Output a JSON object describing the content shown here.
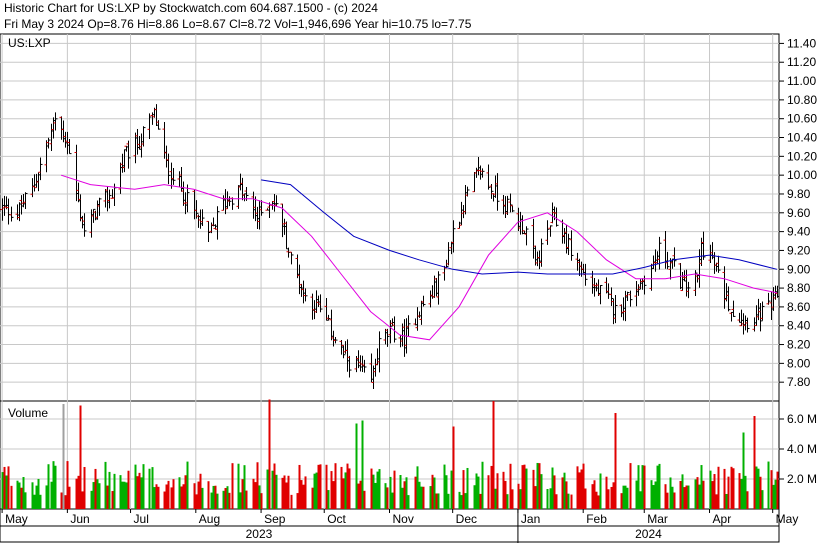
{
  "header": {
    "line1": "Historic Chart for US:LXP by Stockwatch.com 604.687.1500 - (c) 2024",
    "line2": "Fri May  3 2024  Op=8.76  Hi=8.86  Lo=8.67  Cl=8.72  Vol=1,946,696  Year hi=10.75  lo=7.75"
  },
  "chart_data": [
    {
      "type": "ohlc",
      "symbol_label": "US:LXP",
      "ylim": [
        7.6,
        11.5
      ],
      "y_ticks": [
        "11.40",
        "11.20",
        "11.00",
        "10.80",
        "10.60",
        "10.40",
        "10.20",
        "10.00",
        "9.80",
        "9.60",
        "9.40",
        "9.20",
        "9.00",
        "8.80",
        "8.60",
        "8.40",
        "8.20",
        "8.00",
        "7.80"
      ],
      "x_ticks": [
        "May",
        "Jun",
        "Jul",
        "Aug",
        "Sep",
        "Oct",
        "Nov",
        "Dec",
        "Jan",
        "Feb",
        "Mar",
        "Apr",
        "May"
      ],
      "years": [
        "2023",
        "2024"
      ],
      "close_path": [
        [
          "2023-05-01",
          9.65
        ],
        [
          "2023-05-08",
          9.6
        ],
        [
          "2023-05-15",
          9.85
        ],
        [
          "2023-05-22",
          10.3
        ],
        [
          "2023-05-26",
          10.6
        ],
        [
          "2023-06-01",
          10.35
        ],
        [
          "2023-06-05",
          9.8
        ],
        [
          "2023-06-09",
          9.4
        ],
        [
          "2023-06-15",
          9.65
        ],
        [
          "2023-06-22",
          9.8
        ],
        [
          "2023-06-28",
          10.2
        ],
        [
          "2023-07-05",
          10.35
        ],
        [
          "2023-07-12",
          10.65
        ],
        [
          "2023-07-18",
          10.1
        ],
        [
          "2023-07-24",
          9.9
        ],
        [
          "2023-07-31",
          9.6
        ],
        [
          "2023-08-07",
          9.35
        ],
        [
          "2023-08-14",
          9.7
        ],
        [
          "2023-08-22",
          9.85
        ],
        [
          "2023-08-30",
          9.55
        ],
        [
          "2023-09-06",
          9.75
        ],
        [
          "2023-09-11",
          9.5
        ],
        [
          "2023-09-15",
          9.1
        ],
        [
          "2023-09-22",
          8.7
        ],
        [
          "2023-09-28",
          8.6
        ],
        [
          "2023-10-05",
          8.3
        ],
        [
          "2023-10-11",
          8.05
        ],
        [
          "2023-10-17",
          7.95
        ],
        [
          "2023-10-23",
          7.8
        ],
        [
          "2023-10-27",
          8.2
        ],
        [
          "2023-11-02",
          8.35
        ],
        [
          "2023-11-08",
          8.25
        ],
        [
          "2023-11-14",
          8.55
        ],
        [
          "2023-11-20",
          8.7
        ],
        [
          "2023-11-27",
          9.0
        ],
        [
          "2023-12-01",
          9.4
        ],
        [
          "2023-12-07",
          9.75
        ],
        [
          "2023-12-11",
          9.95
        ],
        [
          "2023-12-14",
          10.05
        ],
        [
          "2023-12-19",
          9.85
        ],
        [
          "2023-12-26",
          9.7
        ],
        [
          "2023-12-29",
          9.6
        ],
        [
          "2024-01-05",
          9.4
        ],
        [
          "2024-01-09",
          9.05
        ],
        [
          "2024-01-12",
          9.2
        ],
        [
          "2024-01-17",
          9.55
        ],
        [
          "2024-01-22",
          9.4
        ],
        [
          "2024-01-26",
          9.2
        ],
        [
          "2024-02-01",
          8.95
        ],
        [
          "2024-02-06",
          8.8
        ],
        [
          "2024-02-12",
          8.7
        ],
        [
          "2024-02-16",
          8.55
        ],
        [
          "2024-02-22",
          8.7
        ],
        [
          "2024-02-28",
          8.85
        ],
        [
          "2024-03-04",
          9.0
        ],
        [
          "2024-03-08",
          9.2
        ],
        [
          "2024-03-14",
          9.05
        ],
        [
          "2024-03-20",
          8.8
        ],
        [
          "2024-03-26",
          8.9
        ],
        [
          "2024-03-28",
          9.25
        ],
        [
          "2024-04-02",
          9.1
        ],
        [
          "2024-04-08",
          8.75
        ],
        [
          "2024-04-12",
          8.55
        ],
        [
          "2024-04-18",
          8.45
        ],
        [
          "2024-04-24",
          8.5
        ],
        [
          "2024-04-30",
          8.6
        ],
        [
          "2024-05-03",
          8.72
        ]
      ],
      "series": [
        {
          "name": "",
          "color": "#e000e0",
          "values": [
            [
              "2023-05-29",
              10.0
            ],
            [
              "2023-06-12",
              9.9
            ],
            [
              "2023-07-03",
              9.85
            ],
            [
              "2023-07-17",
              9.9
            ],
            [
              "2023-07-31",
              9.85
            ],
            [
              "2023-08-14",
              9.75
            ],
            [
              "2023-08-28",
              9.75
            ],
            [
              "2023-09-11",
              9.65
            ],
            [
              "2023-09-25",
              9.35
            ],
            [
              "2023-10-09",
              8.95
            ],
            [
              "2023-10-23",
              8.55
            ],
            [
              "2023-11-06",
              8.3
            ],
            [
              "2023-11-20",
              8.25
            ],
            [
              "2023-12-04",
              8.6
            ],
            [
              "2023-12-18",
              9.15
            ],
            [
              "2024-01-01",
              9.5
            ],
            [
              "2024-01-15",
              9.6
            ],
            [
              "2024-01-29",
              9.4
            ],
            [
              "2024-02-12",
              9.1
            ],
            [
              "2024-02-26",
              8.9
            ],
            [
              "2024-03-11",
              8.9
            ],
            [
              "2024-03-25",
              8.95
            ],
            [
              "2024-04-08",
              8.9
            ],
            [
              "2024-04-22",
              8.8
            ],
            [
              "2024-05-03",
              8.75
            ]
          ]
        },
        {
          "name": "",
          "color": "#0000c0",
          "values": [
            [
              "2023-09-01",
              9.95
            ],
            [
              "2023-09-15",
              9.9
            ],
            [
              "2023-10-01",
              9.6
            ],
            [
              "2023-10-15",
              9.35
            ],
            [
              "2023-11-01",
              9.2
            ],
            [
              "2023-11-15",
              9.1
            ],
            [
              "2023-12-01",
              9.0
            ],
            [
              "2023-12-15",
              8.95
            ],
            [
              "2024-01-01",
              8.97
            ],
            [
              "2024-01-15",
              8.95
            ],
            [
              "2024-02-01",
              8.95
            ],
            [
              "2024-02-15",
              8.95
            ],
            [
              "2024-03-01",
              9.02
            ],
            [
              "2024-03-15",
              9.1
            ],
            [
              "2024-04-01",
              9.15
            ],
            [
              "2024-04-15",
              9.1
            ],
            [
              "2024-05-03",
              9.0
            ]
          ]
        }
      ]
    },
    {
      "type": "bar",
      "title": "Volume",
      "ylim": [
        0,
        7.2
      ],
      "y_ticks": [
        "6.0 M",
        "4.0 M",
        "2.0 M"
      ],
      "colors": {
        "up": "#00b000",
        "down": "#e00000",
        "flat": "#a0a0a0"
      },
      "spikes": [
        [
          "2023-05-30",
          7.0,
          "flat"
        ],
        [
          "2023-06-07",
          6.9,
          "down"
        ],
        [
          "2023-09-05",
          7.3,
          "down"
        ],
        [
          "2023-10-16",
          5.7,
          "up"
        ],
        [
          "2023-10-19",
          5.9,
          "up"
        ],
        [
          "2023-12-01",
          5.5,
          "down"
        ],
        [
          "2023-12-20",
          7.2,
          "down"
        ],
        [
          "2024-02-16",
          6.4,
          "down"
        ],
        [
          "2024-04-17",
          5.1,
          "up"
        ],
        [
          "2024-04-22",
          6.2,
          "down"
        ]
      ]
    }
  ]
}
